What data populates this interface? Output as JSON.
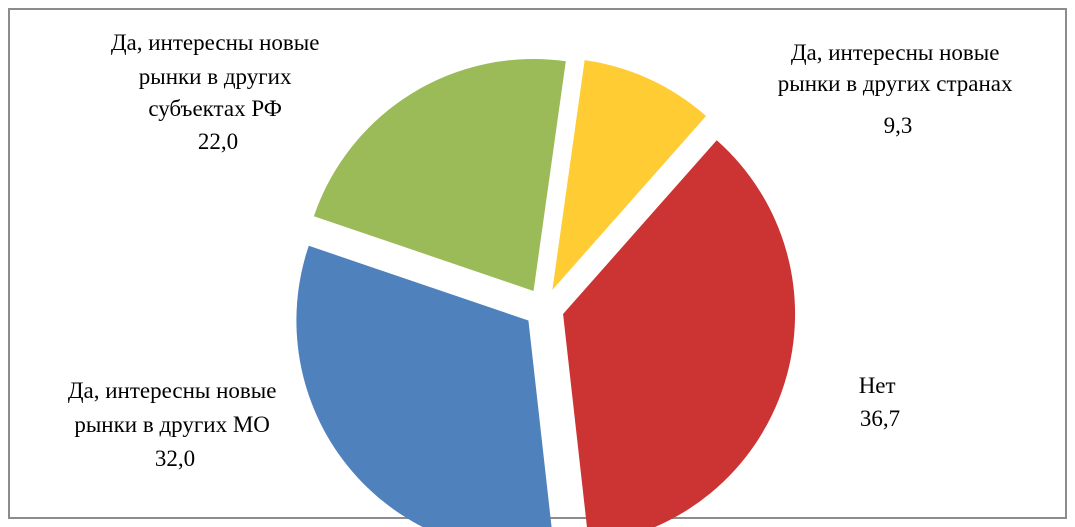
{
  "chart_data": {
    "type": "pie",
    "title": "",
    "start_angle_deg": 8,
    "exploded": true,
    "slices": [
      {
        "label_lines": [
          "Да, интересны новые",
          "рынки в других странах"
        ],
        "value": 9.3,
        "value_text": "9,3",
        "color": "#FFCC33"
      },
      {
        "label_lines": [
          "Нет"
        ],
        "value": 36.7,
        "value_text": "36,7",
        "color": "#CC3333"
      },
      {
        "label_lines": [
          "Да, интересны новые",
          "рынки в других МО"
        ],
        "value": 32.0,
        "value_text": "32,0",
        "color": "#4F81BD"
      },
      {
        "label_lines": [
          "Да, интересны новые",
          "рынки в других",
          "субъектах РФ"
        ],
        "value": 22.0,
        "value_text": "22,0",
        "color": "#9BBB59"
      }
    ],
    "border_color": "#8C8C8C"
  }
}
